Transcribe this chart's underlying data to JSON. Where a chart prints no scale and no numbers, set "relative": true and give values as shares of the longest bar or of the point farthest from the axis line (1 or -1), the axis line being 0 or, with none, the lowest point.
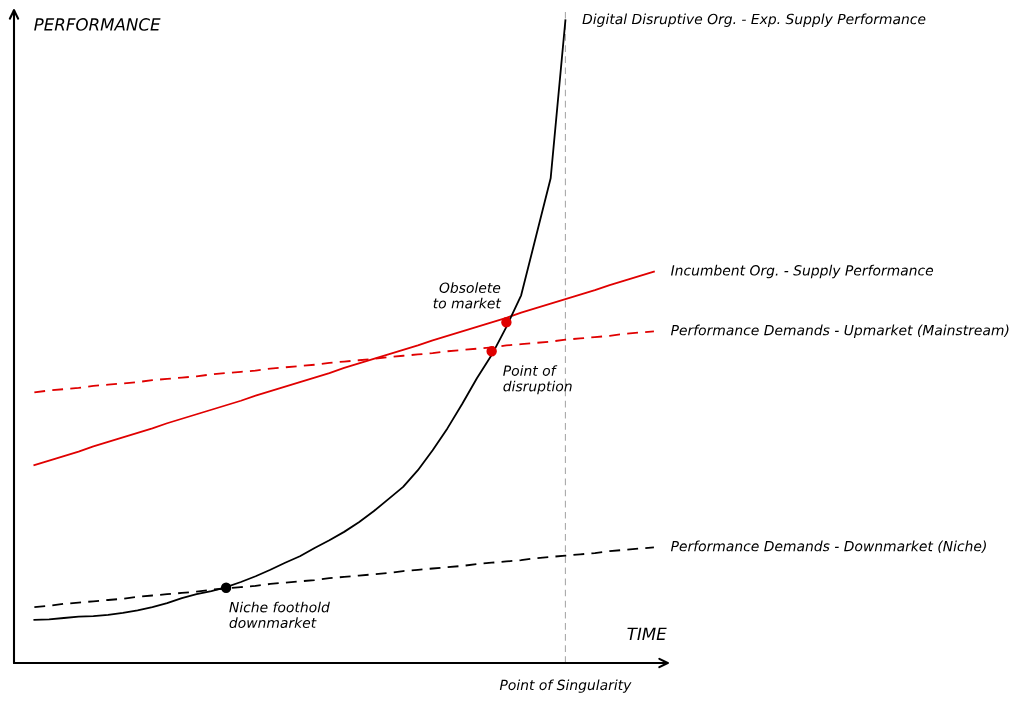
{
  "chart_data": {
    "type": "line",
    "relative": true,
    "xlabel": "TIME",
    "ylabel": "PERFORMANCE",
    "grid": false,
    "marker": "none",
    "categories": [
      null,
      null,
      null,
      null,
      null,
      null,
      null,
      null,
      null,
      null,
      null,
      null,
      null,
      null,
      null,
      null,
      null,
      null,
      null,
      null,
      null,
      null,
      null,
      null,
      null,
      null,
      null,
      null,
      null,
      null,
      null,
      null,
      null,
      null,
      null,
      null,
      null,
      null,
      null,
      null,
      null,
      null,
      null
    ],
    "series": [
      {
        "name": "Performance Demands - Downmarket (Niche)",
        "color": "#000000",
        "line_style": "dashed",
        "values": [
          0.087,
          0.089,
          0.092,
          0.094,
          0.096,
          0.098,
          0.1,
          0.103,
          0.105,
          0.107,
          0.109,
          0.111,
          0.114,
          0.116,
          0.118,
          0.12,
          0.123,
          0.125,
          0.127,
          0.129,
          0.132,
          0.134,
          0.136,
          0.138,
          0.14,
          0.143,
          0.145,
          0.147,
          0.149,
          0.151,
          0.154,
          0.156,
          0.158,
          0.16,
          0.163,
          0.165,
          0.167,
          0.169,
          0.171,
          0.174,
          0.176,
          0.178,
          0.18
        ]
      },
      {
        "name": "Performance Demands - Upmarket (Mainstream)",
        "color": "#e00000",
        "line_style": "dashed",
        "values": [
          0.421,
          0.424,
          0.426,
          0.428,
          0.431,
          0.433,
          0.435,
          0.437,
          0.44,
          0.442,
          0.444,
          0.446,
          0.449,
          0.451,
          0.453,
          0.455,
          0.458,
          0.46,
          0.462,
          0.464,
          0.467,
          0.469,
          0.471,
          0.473,
          0.476,
          0.478,
          0.48,
          0.482,
          0.485,
          0.487,
          0.489,
          0.491,
          0.494,
          0.496,
          0.498,
          0.5,
          0.503,
          0.505,
          0.507,
          0.509,
          0.512,
          0.514,
          0.516
        ]
      },
      {
        "name": "Incumbent Org. - Supply Performance",
        "color": "#e00000",
        "line_style": "solid",
        "values": [
          0.308,
          0.315,
          0.322,
          0.329,
          0.337,
          0.344,
          0.351,
          0.358,
          0.365,
          0.373,
          0.38,
          0.387,
          0.394,
          0.401,
          0.408,
          0.416,
          0.423,
          0.43,
          0.437,
          0.444,
          0.451,
          0.459,
          0.466,
          0.473,
          0.48,
          0.487,
          0.494,
          0.502,
          0.509,
          0.516,
          0.523,
          0.53,
          0.537,
          0.545,
          0.552,
          0.559,
          0.566,
          0.573,
          0.58,
          0.588,
          0.595,
          0.602,
          0.609
        ]
      },
      {
        "name": "Digital Disruptive Org. - Exp. Supply Performance",
        "color": "#000000",
        "line_style": "solid",
        "values": [
          0.067,
          0.068,
          0.07,
          0.072,
          0.073,
          0.075,
          0.078,
          0.082,
          0.087,
          0.093,
          0.101,
          0.107,
          0.112,
          0.118,
          0.126,
          0.135,
          0.145,
          0.156,
          0.166,
          0.179,
          0.191,
          0.204,
          0.219,
          0.236,
          0.255,
          0.274,
          0.3,
          0.331,
          0.365,
          0.403,
          0.443,
          0.479,
          0.523,
          0.572,
          0.663,
          0.754,
          1.0,
          null,
          null,
          null,
          null,
          null,
          null
        ]
      },
      {
        "type": "line",
        "marker": "circle",
        "color": "#000000",
        "values": [
          null,
          null,
          null,
          null,
          null,
          null,
          null,
          null,
          null,
          null,
          null,
          null,
          null,
          0.117,
          null,
          null,
          null,
          null,
          null,
          null,
          null,
          null,
          null,
          null,
          null,
          null,
          null,
          null,
          null,
          null,
          null,
          null,
          null,
          null,
          null,
          null,
          null,
          null,
          null,
          null,
          null,
          null,
          null
        ]
      },
      {
        "type": "line",
        "marker": "circle",
        "color": "#e00000",
        "values": [
          null,
          null,
          null,
          null,
          null,
          null,
          null,
          null,
          null,
          null,
          null,
          null,
          null,
          null,
          null,
          null,
          null,
          null,
          null,
          null,
          null,
          null,
          null,
          null,
          null,
          null,
          null,
          null,
          null,
          null,
          null,
          null,
          0.53,
          null,
          null,
          null,
          null,
          null,
          null,
          null,
          null,
          null,
          null
        ]
      },
      {
        "type": "line",
        "marker": "circle",
        "color": "#e00000",
        "values": [
          null,
          null,
          null,
          null,
          null,
          null,
          null,
          null,
          null,
          null,
          null,
          null,
          null,
          null,
          null,
          null,
          null,
          null,
          null,
          null,
          null,
          null,
          null,
          null,
          null,
          null,
          null,
          null,
          null,
          null,
          null,
          0.485,
          null,
          null,
          null,
          null,
          null,
          null,
          null,
          null,
          null,
          null,
          null
        ]
      }
    ],
    "annotations": [
      "Niche foothold\ndownmarket",
      "Obsolete\nto market",
      "Point of\ndisruption",
      "Point of Singularity"
    ]
  }
}
